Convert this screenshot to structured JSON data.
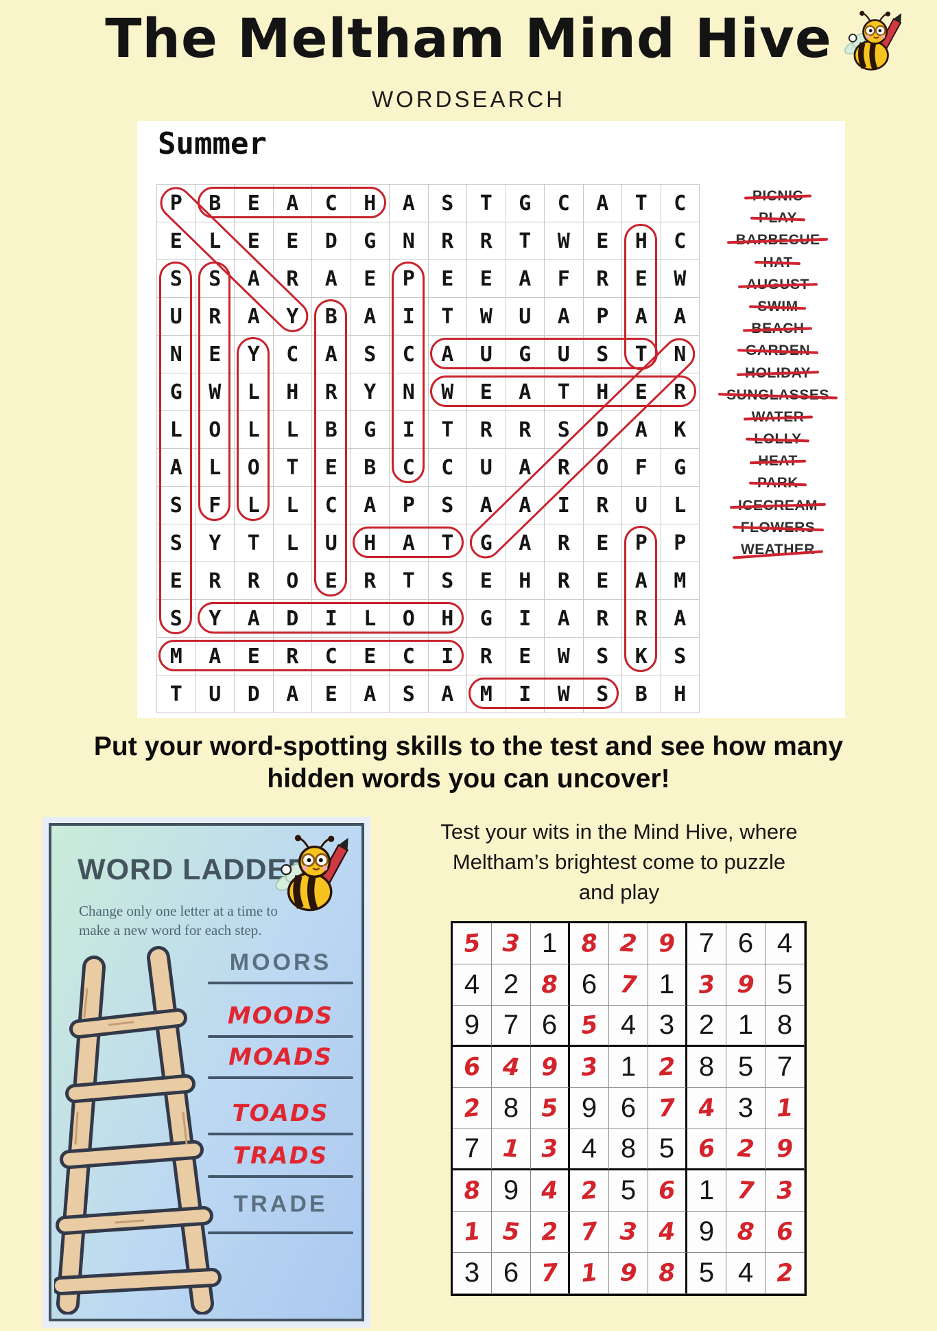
{
  "page": {
    "title": "The Meltham Mind Hive",
    "subtitle": "WORDSEARCH",
    "prompt_line1": "Put your word-spotting skills to the test and see how many",
    "prompt_line2": "hidden words you can uncover!",
    "tagline_line1": "Test your wits in the Mind Hive, where",
    "tagline_line2": "Meltham’s brightest come to puzzle",
    "tagline_line3": "and play"
  },
  "colors": {
    "page_bg": "#faf4ca",
    "accent_red": "#c8232c",
    "card_border": "#41525f",
    "hand_red": "#e02731"
  },
  "wordsearch": {
    "grid_title": "Summer",
    "rows": [
      "PBEACHASTGCATC",
      "ELEEDGNRRTWEHC",
      "SSARAEPEEAFREW",
      "URAYBAITWUAPAA",
      "NEYCASCAUGUSTN",
      "GWLHRYNWEATHER",
      "LOLLBGITRRSDAK",
      "ALOTEBCCUAROFG",
      "SFLLCAPSAAIRUL",
      "SYTLUHATGAREPP",
      "ERROERTSEHREAM",
      "SYADILOHGIARRA",
      "MAERCECIREWSKS",
      "TUDAEASAMIWSBH"
    ],
    "words": [
      {
        "label": "PICNIC",
        "struck": true
      },
      {
        "label": "PLAY",
        "struck": true
      },
      {
        "label": "BARBECUE",
        "struck": true
      },
      {
        "label": "HAT",
        "struck": true
      },
      {
        "label": "AUGUST",
        "struck": true
      },
      {
        "label": "SWIM",
        "struck": true
      },
      {
        "label": "BEACH",
        "struck": true
      },
      {
        "label": "GARDEN",
        "struck": true
      },
      {
        "label": "HOLIDAY",
        "struck": true
      },
      {
        "label": "SUNGLASSES",
        "struck": true
      },
      {
        "label": "WATER",
        "struck": true
      },
      {
        "label": "LOLLY",
        "struck": true
      },
      {
        "label": "HEAT",
        "struck": true
      },
      {
        "label": "PARK",
        "struck": true
      },
      {
        "label": "ICECREAM",
        "struck": true
      },
      {
        "label": "FLOWERS",
        "struck": true
      },
      {
        "label": "WEATHER",
        "struck": true,
        "strike_low": true
      }
    ],
    "found_marks": [
      {
        "word": "BEACH",
        "type": "h",
        "row": 1,
        "col_start": 2,
        "col_end": 6
      },
      {
        "word": "PLAY",
        "type": "d",
        "row_start": 1,
        "col_start": 1,
        "row_end": 4,
        "col_end": 4
      },
      {
        "word": "HEAT",
        "type": "v",
        "col": 13,
        "row_start": 2,
        "row_end": 5
      },
      {
        "word": "AUGUST",
        "type": "h",
        "row": 5,
        "col_start": 8,
        "col_end": 13
      },
      {
        "word": "WEATHER",
        "type": "h",
        "row": 6,
        "col_start": 8,
        "col_end": 14
      },
      {
        "word": "GARDEN",
        "type": "d",
        "row_start": 10,
        "col_start": 9,
        "row_end": 5,
        "col_end": 14
      },
      {
        "word": "PICNIC",
        "type": "v",
        "col": 7,
        "row_start": 3,
        "row_end": 8
      },
      {
        "word": "SUNGLASSES",
        "type": "v",
        "col": 1,
        "row_start": 3,
        "row_end": 12
      },
      {
        "word": "FLOWERS",
        "type": "v",
        "col": 2,
        "row_start": 3,
        "row_end": 9
      },
      {
        "word": "LOLLY",
        "type": "v",
        "col": 3,
        "row_start": 5,
        "row_end": 9
      },
      {
        "word": "BARBECUE",
        "type": "v",
        "col": 5,
        "row_start": 4,
        "row_end": 11
      },
      {
        "word": "HAT",
        "type": "h",
        "row": 10,
        "col_start": 6,
        "col_end": 8
      },
      {
        "word": "HOLIDAY",
        "type": "h",
        "row": 12,
        "col_start": 2,
        "col_end": 8
      },
      {
        "word": "ICECREAM",
        "type": "h",
        "row": 13,
        "col_start": 1,
        "col_end": 8
      },
      {
        "word": "SWIM",
        "type": "h",
        "row": 14,
        "col_start": 9,
        "col_end": 12
      },
      {
        "word": "PARK",
        "type": "v",
        "col": 13,
        "row_start": 10,
        "row_end": 13
      }
    ]
  },
  "word_ladder": {
    "title": "WORD LADDER",
    "instructions_line1": "Change only one letter at a time to",
    "instructions_line2": "make a new word for each step.",
    "steps": [
      {
        "word": "MOORS",
        "given": true
      },
      {
        "word": "MOODS",
        "given": false
      },
      {
        "word": "MOADS",
        "given": false
      },
      {
        "word": "TOADS",
        "given": false
      },
      {
        "word": "TRADS",
        "given": false
      },
      {
        "word": "TRADE",
        "given": true
      }
    ]
  },
  "sudoku": {
    "rows": [
      "531829764",
      "428671395",
      "976543218",
      "649312857",
      "285967431",
      "713485629",
      "894256173",
      "152734986",
      "367198542"
    ],
    "handwritten_mask": [
      "110111000",
      "001010110",
      "000100000",
      "111101000",
      "101001101",
      "011000111",
      "101101011",
      "111111011",
      "001111001"
    ]
  }
}
